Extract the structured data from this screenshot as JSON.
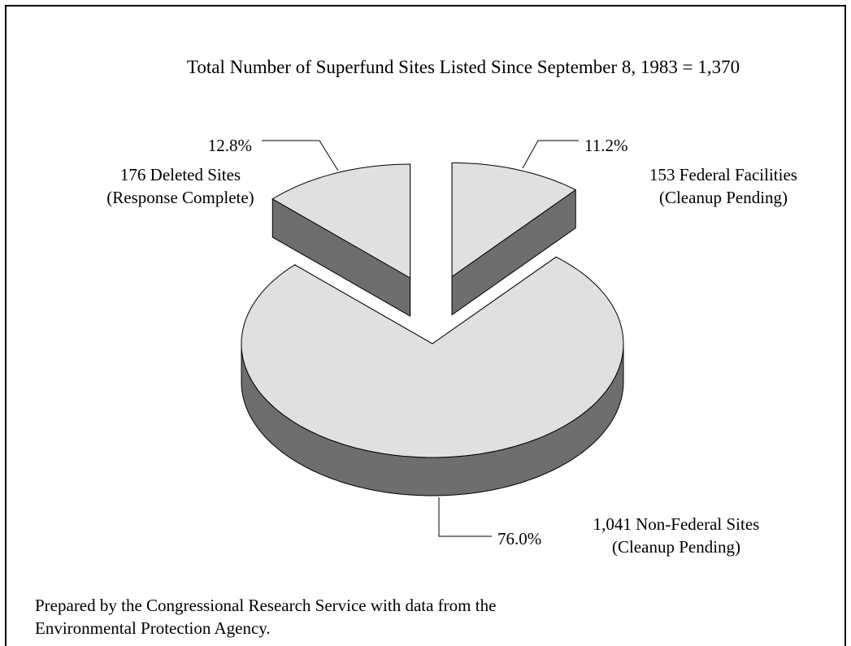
{
  "chart_data": {
    "type": "pie",
    "title": "Total Number of Superfund Sites Listed Since September 8, 1983 = 1,370",
    "categories": [
      "153 Federal Facilities\n(Cleanup Pending)",
      "1,041 Non-Federal Sites\n(Cleanup Pending)",
      "176 Deleted Sites\n(Response Complete)"
    ],
    "values": [
      11.2,
      76,
      12.8
    ],
    "value_labels": [
      "11.2%",
      "76.0%",
      "12.8%"
    ],
    "color": "#e0e0e0",
    "side_color": "#6e6e6e",
    "note": "Prepared by the Congressional Research Service with data from the\nEnvironmental Protection Agency."
  }
}
